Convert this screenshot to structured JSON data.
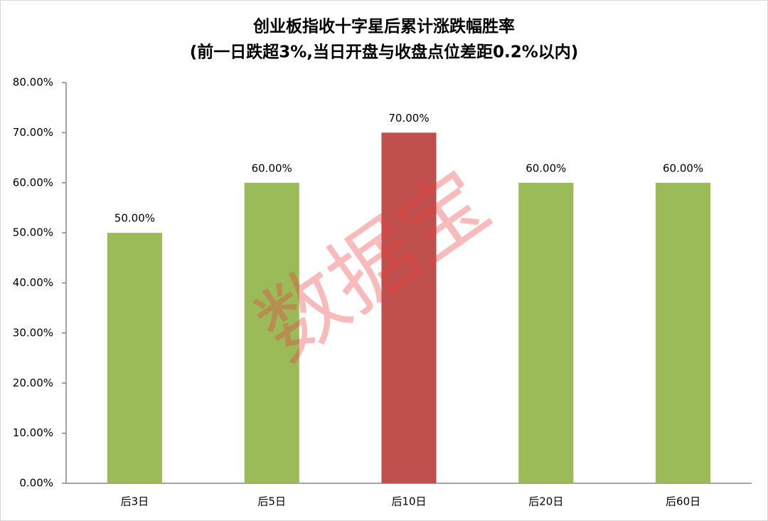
{
  "chart_data": {
    "type": "bar",
    "title": "创业板指收十字星后累计涨跌幅胜率",
    "subtitle": "(前一日跌超3%,当日开盘与收盘点位差距0.2%以内)",
    "watermark": "数据宝",
    "categories": [
      "后3日",
      "后5日",
      "后10日",
      "后20日",
      "后60日"
    ],
    "values": [
      50,
      60,
      70,
      60,
      60
    ],
    "value_labels": [
      "50.00%",
      "60.00%",
      "70.00%",
      "60.00%",
      "60.00%"
    ],
    "colors": [
      "#9bbb59",
      "#9bbb59",
      "#c0504d",
      "#9bbb59",
      "#9bbb59"
    ],
    "ylim": [
      0,
      80
    ],
    "yticks": [
      {
        "value": 0,
        "label": "0.00%"
      },
      {
        "value": 10,
        "label": "10.00%"
      },
      {
        "value": 20,
        "label": "20.00%"
      },
      {
        "value": 30,
        "label": "30.00%"
      },
      {
        "value": 40,
        "label": "40.00%"
      },
      {
        "value": 50,
        "label": "50.00%"
      },
      {
        "value": 60,
        "label": "60.00%"
      },
      {
        "value": 70,
        "label": "70.00%"
      },
      {
        "value": 80,
        "label": "80.00%"
      }
    ],
    "grid": false
  }
}
